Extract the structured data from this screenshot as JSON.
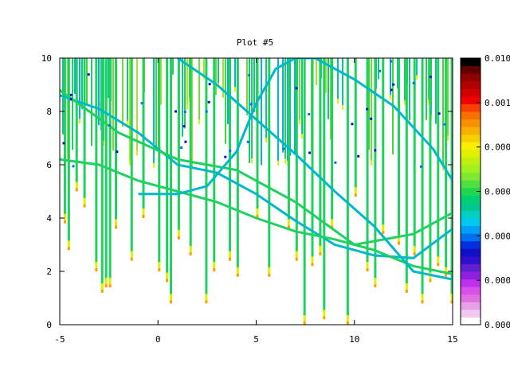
{
  "chart_data": {
    "type": "heatmap",
    "title": "Plot #5",
    "xlabel": "",
    "ylabel": "",
    "xlim": [
      -5,
      15
    ],
    "ylim": [
      0,
      10
    ],
    "x_ticks": [
      "-5",
      "0",
      "5",
      "10",
      "15"
    ],
    "y_ticks": [
      "0",
      "2",
      "4",
      "6",
      "8",
      "10"
    ],
    "colorbar": {
      "tick_labels": [
        "0.000",
        "0.000",
        "0.000",
        "0.000",
        "0.000",
        "0.001",
        "0.010"
      ],
      "colors": [
        "#ffffff",
        "#f0c8f0",
        "#e8a0e8",
        "#e070e0",
        "#d850e8",
        "#c030f0",
        "#9020e0",
        "#6020d0",
        "#3010d0",
        "#1010c8",
        "#0030e0",
        "#0070f0",
        "#00a0f8",
        "#00c8f0",
        "#00d0c0",
        "#00c890",
        "#00d070",
        "#20d850",
        "#50e040",
        "#80e830",
        "#a0f020",
        "#c0f010",
        "#e0f000",
        "#f8f000",
        "#f8d000",
        "#f8b000",
        "#f89000",
        "#f87000",
        "#f84000",
        "#f00000",
        "#d00000",
        "#b00000",
        "#900000",
        "#600000",
        "#000000"
      ]
    },
    "curves": [
      {
        "x": [
          -5,
          -3,
          -1,
          1,
          3,
          5,
          7,
          9,
          11,
          13,
          15
        ],
        "y": [
          8.6,
          8.1,
          7.2,
          6.0,
          5.7,
          4.9,
          3.9,
          3.0,
          2.6,
          2.5,
          3.6
        ]
      },
      {
        "x": [
          -5,
          -3,
          -1,
          1,
          3,
          5,
          7,
          9,
          11,
          13,
          15
        ],
        "y": [
          6.2,
          6.0,
          5.4,
          5.0,
          4.6,
          4.0,
          3.5,
          3.2,
          2.8,
          2.2,
          1.9
        ]
      },
      {
        "x": [
          -5,
          -2,
          1,
          4,
          7,
          10,
          13,
          15
        ],
        "y": [
          8.8,
          7.2,
          6.2,
          5.8,
          4.6,
          3.0,
          3.4,
          4.2
        ]
      },
      {
        "x": [
          -1,
          1,
          2.5,
          4,
          5,
          6,
          7,
          8,
          10,
          12,
          14,
          15
        ],
        "y": [
          4.9,
          4.9,
          5.2,
          6.5,
          8.3,
          9.6,
          10,
          10,
          9.2,
          8.2,
          6.6,
          5.4
        ]
      },
      {
        "x": [
          1,
          3,
          5,
          7,
          9,
          11,
          13,
          15
        ],
        "y": [
          10,
          9.0,
          7.7,
          6.4,
          5.0,
          3.7,
          2.0,
          1.7
        ]
      }
    ],
    "spikes": [
      {
        "x": -4.8,
        "y": 3.8
      },
      {
        "x": -4.6,
        "y": 2.8
      },
      {
        "x": -4.2,
        "y": 5.0
      },
      {
        "x": -3.8,
        "y": 4.4
      },
      {
        "x": -3.2,
        "y": 2.0
      },
      {
        "x": -2.9,
        "y": 1.2
      },
      {
        "x": -2.7,
        "y": 1.4
      },
      {
        "x": -2.5,
        "y": 1.4
      },
      {
        "x": -2.2,
        "y": 3.6
      },
      {
        "x": -1.4,
        "y": 2.4
      },
      {
        "x": -0.8,
        "y": 4.0
      },
      {
        "x": 0.0,
        "y": 2.0
      },
      {
        "x": 0.4,
        "y": 1.6
      },
      {
        "x": 0.6,
        "y": 0.8
      },
      {
        "x": 1.0,
        "y": 3.2
      },
      {
        "x": 1.6,
        "y": 2.6
      },
      {
        "x": 2.4,
        "y": 0.8
      },
      {
        "x": 2.8,
        "y": 2.0
      },
      {
        "x": 3.6,
        "y": 2.4
      },
      {
        "x": 4.0,
        "y": 1.8
      },
      {
        "x": 5.0,
        "y": 4.0
      },
      {
        "x": 5.6,
        "y": 1.8
      },
      {
        "x": 6.6,
        "y": 3.6
      },
      {
        "x": 7.0,
        "y": 2.4
      },
      {
        "x": 7.4,
        "y": 0.0
      },
      {
        "x": 7.8,
        "y": 2.2
      },
      {
        "x": 8.2,
        "y": 2.6
      },
      {
        "x": 8.4,
        "y": 0.2
      },
      {
        "x": 8.8,
        "y": 3.6
      },
      {
        "x": 9.6,
        "y": 0.0
      },
      {
        "x": 10.0,
        "y": 4.8
      },
      {
        "x": 10.6,
        "y": 2.0
      },
      {
        "x": 11.0,
        "y": 1.4
      },
      {
        "x": 11.4,
        "y": 3.4
      },
      {
        "x": 12.2,
        "y": 3.0
      },
      {
        "x": 12.6,
        "y": 1.2
      },
      {
        "x": 13.0,
        "y": 2.6
      },
      {
        "x": 13.4,
        "y": 0.8
      },
      {
        "x": 13.8,
        "y": 1.6
      },
      {
        "x": 14.2,
        "y": 2.2
      },
      {
        "x": 14.6,
        "y": 1.8
      },
      {
        "x": 14.9,
        "y": 0.8
      }
    ]
  }
}
